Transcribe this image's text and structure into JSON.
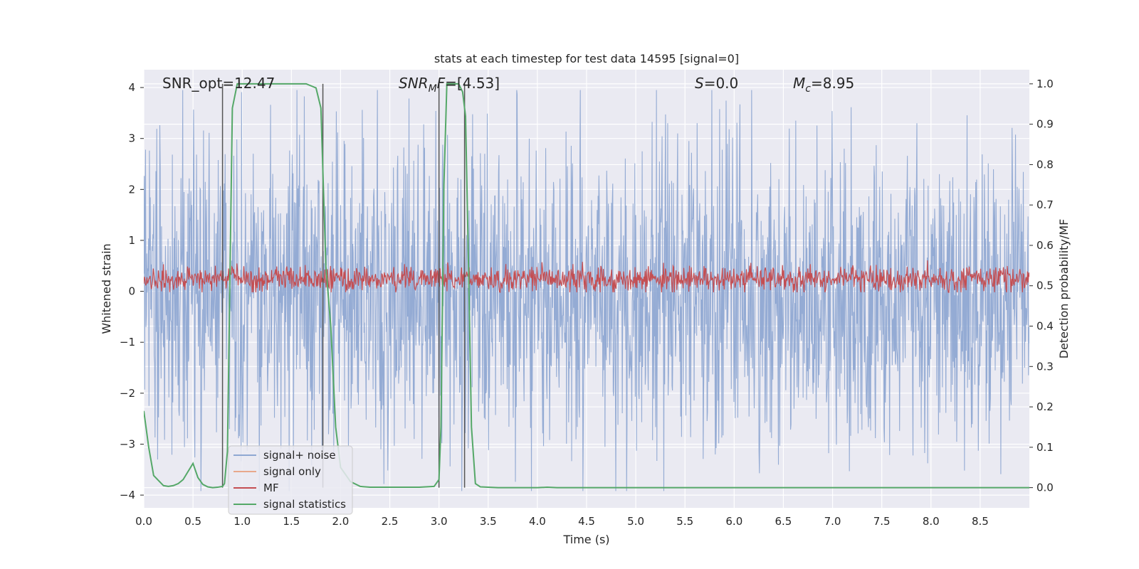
{
  "chart_data": {
    "type": "line",
    "title": "stats at each timestep for test data 14595 [signal=0]",
    "xlabel": "Time (s)",
    "ylabel": "Whitened strain",
    "ylabel_right": "Detection probability/MF",
    "xlim": [
      0.0,
      9.0
    ],
    "ylim": [
      -4.25,
      4.35
    ],
    "ylim_right": [
      -0.05,
      1.035
    ],
    "x_ticks": [
      0.0,
      0.5,
      1.0,
      1.5,
      2.0,
      2.5,
      3.0,
      3.5,
      4.0,
      4.5,
      5.0,
      5.5,
      6.0,
      6.5,
      7.0,
      7.5,
      8.0,
      8.5
    ],
    "x_tick_labels": [
      "0.0",
      "0.5",
      "1.0",
      "1.5",
      "2.0",
      "2.5",
      "3.0",
      "3.5",
      "4.0",
      "4.5",
      "5.0",
      "5.5",
      "6.0",
      "6.5",
      "7.0",
      "7.5",
      "8.0",
      "8.5"
    ],
    "y_ticks": [
      -4,
      -3,
      -2,
      -1,
      0,
      1,
      2,
      3,
      4
    ],
    "y_tick_labels": [
      "−4",
      "−3",
      "−2",
      "−1",
      "0",
      "1",
      "2",
      "3",
      "4"
    ],
    "y2_ticks": [
      0.0,
      0.1,
      0.2,
      0.3,
      0.4,
      0.5,
      0.6,
      0.7,
      0.8,
      0.9,
      1.0
    ],
    "y2_tick_labels": [
      "0.0",
      "0.1",
      "0.2",
      "0.3",
      "0.4",
      "0.5",
      "0.6",
      "0.7",
      "0.8",
      "0.9",
      "1.0"
    ],
    "grid": true,
    "legend_position": "lower-left",
    "annotations": {
      "snr_opt": "SNR_opt=12.47",
      "snr_mf_main": "SNR",
      "snr_mf_sub": "M",
      "snr_mf_tail": "F",
      "snr_mf_value": "=[4.53]",
      "s_main": "S",
      "s_value": "=0.0",
      "mc_main": "M",
      "mc_sub": "c",
      "mc_value": "=8.95"
    },
    "noise": {
      "description_ref": "signal+ noise",
      "mean": -0.1,
      "sigma": 1.05,
      "upper_max": 3.95,
      "lower_min": -3.92,
      "n_samples": 2048,
      "color": "#8fa8d2"
    },
    "mf": {
      "baseline": 0.25,
      "sigma": 0.13,
      "max": 0.85,
      "min": -0.02,
      "n_samples": 1400,
      "color": "#c44e52"
    },
    "signal_statistics": {
      "color": "#55a868",
      "x": [
        0.0,
        0.05,
        0.1,
        0.2,
        0.25,
        0.3,
        0.35,
        0.4,
        0.45,
        0.5,
        0.55,
        0.6,
        0.65,
        0.7,
        0.75,
        0.8,
        0.82,
        0.85,
        0.88,
        0.9,
        0.95,
        1.0,
        1.5,
        1.65,
        1.75,
        1.8,
        1.85,
        1.9,
        1.95,
        2.0,
        2.1,
        2.2,
        2.3,
        2.5,
        2.8,
        2.95,
        3.0,
        3.02,
        3.05,
        3.08,
        3.1,
        3.2,
        3.24,
        3.27,
        3.3,
        3.33,
        3.37,
        3.42,
        3.6,
        4.0,
        4.1,
        4.2,
        5.0,
        6.0,
        7.0,
        8.0,
        9.0
      ],
      "y": [
        0.19,
        0.1,
        0.03,
        0.005,
        0.003,
        0.005,
        0.01,
        0.02,
        0.04,
        0.06,
        0.025,
        0.008,
        0.002,
        0.0,
        0.001,
        0.003,
        0.01,
        0.09,
        0.6,
        0.94,
        1.0,
        1.0,
        1.0,
        1.0,
        0.99,
        0.94,
        0.55,
        0.4,
        0.15,
        0.05,
        0.015,
        0.003,
        0.001,
        0.001,
        0.001,
        0.003,
        0.02,
        0.15,
        0.75,
        1.0,
        1.0,
        1.0,
        0.98,
        0.92,
        0.55,
        0.15,
        0.01,
        0.002,
        0.0,
        0.0,
        0.001,
        0.0,
        0.0,
        0.0,
        0.0,
        0.0,
        0.0
      ]
    },
    "vlines": [
      0.8,
      1.82,
      3.0,
      3.26
    ],
    "vline_color": "#555555",
    "legend": [
      {
        "label": "signal+ noise",
        "color": "#8fa8d2"
      },
      {
        "label": "signal only",
        "color": "#e8a88c"
      },
      {
        "label": "MF",
        "color": "#c44e52"
      },
      {
        "label": "signal statistics",
        "color": "#55a868"
      }
    ]
  }
}
